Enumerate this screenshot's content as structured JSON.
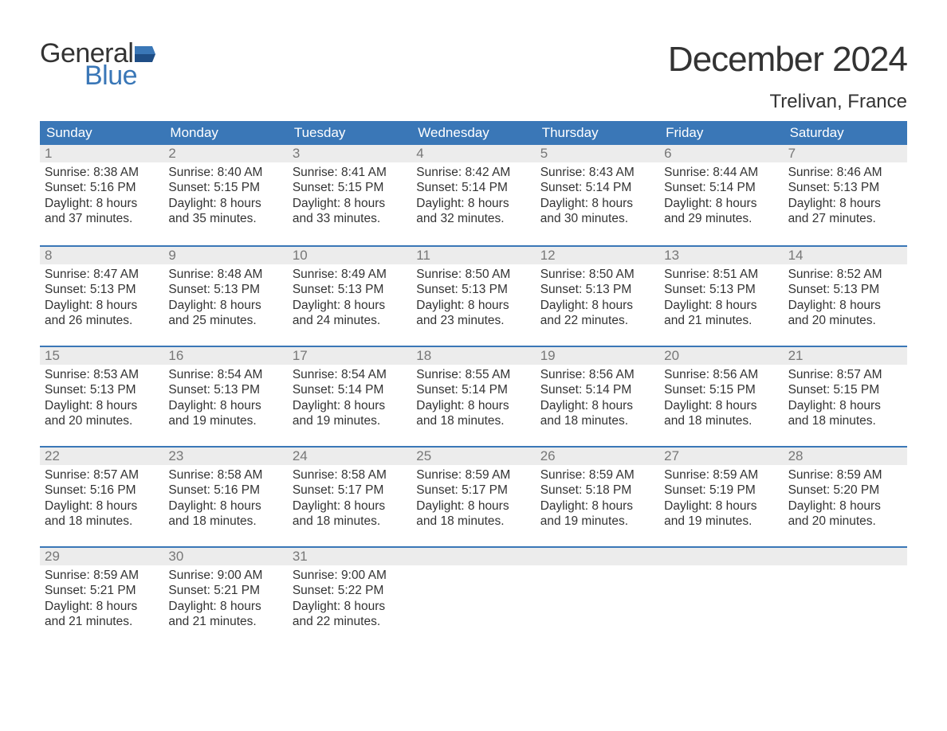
{
  "logo": {
    "word1": "General",
    "word2": "Blue"
  },
  "title": "December 2024",
  "location": "Trelivan, France",
  "colors": {
    "brand_blue": "#3a77b7",
    "header_bg": "#3a77b7",
    "header_text": "#ffffff",
    "daynum_bg": "#ececec",
    "daynum_text": "#777777",
    "body_text": "#333333",
    "page_bg": "#ffffff"
  },
  "weekdays": [
    "Sunday",
    "Monday",
    "Tuesday",
    "Wednesday",
    "Thursday",
    "Friday",
    "Saturday"
  ],
  "weeks": [
    [
      {
        "n": "1",
        "sunrise": "8:38 AM",
        "sunset": "5:16 PM",
        "dl1": "Daylight: 8 hours",
        "dl2": "and 37 minutes."
      },
      {
        "n": "2",
        "sunrise": "8:40 AM",
        "sunset": "5:15 PM",
        "dl1": "Daylight: 8 hours",
        "dl2": "and 35 minutes."
      },
      {
        "n": "3",
        "sunrise": "8:41 AM",
        "sunset": "5:15 PM",
        "dl1": "Daylight: 8 hours",
        "dl2": "and 33 minutes."
      },
      {
        "n": "4",
        "sunrise": "8:42 AM",
        "sunset": "5:14 PM",
        "dl1": "Daylight: 8 hours",
        "dl2": "and 32 minutes."
      },
      {
        "n": "5",
        "sunrise": "8:43 AM",
        "sunset": "5:14 PM",
        "dl1": "Daylight: 8 hours",
        "dl2": "and 30 minutes."
      },
      {
        "n": "6",
        "sunrise": "8:44 AM",
        "sunset": "5:14 PM",
        "dl1": "Daylight: 8 hours",
        "dl2": "and 29 minutes."
      },
      {
        "n": "7",
        "sunrise": "8:46 AM",
        "sunset": "5:13 PM",
        "dl1": "Daylight: 8 hours",
        "dl2": "and 27 minutes."
      }
    ],
    [
      {
        "n": "8",
        "sunrise": "8:47 AM",
        "sunset": "5:13 PM",
        "dl1": "Daylight: 8 hours",
        "dl2": "and 26 minutes."
      },
      {
        "n": "9",
        "sunrise": "8:48 AM",
        "sunset": "5:13 PM",
        "dl1": "Daylight: 8 hours",
        "dl2": "and 25 minutes."
      },
      {
        "n": "10",
        "sunrise": "8:49 AM",
        "sunset": "5:13 PM",
        "dl1": "Daylight: 8 hours",
        "dl2": "and 24 minutes."
      },
      {
        "n": "11",
        "sunrise": "8:50 AM",
        "sunset": "5:13 PM",
        "dl1": "Daylight: 8 hours",
        "dl2": "and 23 minutes."
      },
      {
        "n": "12",
        "sunrise": "8:50 AM",
        "sunset": "5:13 PM",
        "dl1": "Daylight: 8 hours",
        "dl2": "and 22 minutes."
      },
      {
        "n": "13",
        "sunrise": "8:51 AM",
        "sunset": "5:13 PM",
        "dl1": "Daylight: 8 hours",
        "dl2": "and 21 minutes."
      },
      {
        "n": "14",
        "sunrise": "8:52 AM",
        "sunset": "5:13 PM",
        "dl1": "Daylight: 8 hours",
        "dl2": "and 20 minutes."
      }
    ],
    [
      {
        "n": "15",
        "sunrise": "8:53 AM",
        "sunset": "5:13 PM",
        "dl1": "Daylight: 8 hours",
        "dl2": "and 20 minutes."
      },
      {
        "n": "16",
        "sunrise": "8:54 AM",
        "sunset": "5:13 PM",
        "dl1": "Daylight: 8 hours",
        "dl2": "and 19 minutes."
      },
      {
        "n": "17",
        "sunrise": "8:54 AM",
        "sunset": "5:14 PM",
        "dl1": "Daylight: 8 hours",
        "dl2": "and 19 minutes."
      },
      {
        "n": "18",
        "sunrise": "8:55 AM",
        "sunset": "5:14 PM",
        "dl1": "Daylight: 8 hours",
        "dl2": "and 18 minutes."
      },
      {
        "n": "19",
        "sunrise": "8:56 AM",
        "sunset": "5:14 PM",
        "dl1": "Daylight: 8 hours",
        "dl2": "and 18 minutes."
      },
      {
        "n": "20",
        "sunrise": "8:56 AM",
        "sunset": "5:15 PM",
        "dl1": "Daylight: 8 hours",
        "dl2": "and 18 minutes."
      },
      {
        "n": "21",
        "sunrise": "8:57 AM",
        "sunset": "5:15 PM",
        "dl1": "Daylight: 8 hours",
        "dl2": "and 18 minutes."
      }
    ],
    [
      {
        "n": "22",
        "sunrise": "8:57 AM",
        "sunset": "5:16 PM",
        "dl1": "Daylight: 8 hours",
        "dl2": "and 18 minutes."
      },
      {
        "n": "23",
        "sunrise": "8:58 AM",
        "sunset": "5:16 PM",
        "dl1": "Daylight: 8 hours",
        "dl2": "and 18 minutes."
      },
      {
        "n": "24",
        "sunrise": "8:58 AM",
        "sunset": "5:17 PM",
        "dl1": "Daylight: 8 hours",
        "dl2": "and 18 minutes."
      },
      {
        "n": "25",
        "sunrise": "8:59 AM",
        "sunset": "5:17 PM",
        "dl1": "Daylight: 8 hours",
        "dl2": "and 18 minutes."
      },
      {
        "n": "26",
        "sunrise": "8:59 AM",
        "sunset": "5:18 PM",
        "dl1": "Daylight: 8 hours",
        "dl2": "and 19 minutes."
      },
      {
        "n": "27",
        "sunrise": "8:59 AM",
        "sunset": "5:19 PM",
        "dl1": "Daylight: 8 hours",
        "dl2": "and 19 minutes."
      },
      {
        "n": "28",
        "sunrise": "8:59 AM",
        "sunset": "5:20 PM",
        "dl1": "Daylight: 8 hours",
        "dl2": "and 20 minutes."
      }
    ],
    [
      {
        "n": "29",
        "sunrise": "8:59 AM",
        "sunset": "5:21 PM",
        "dl1": "Daylight: 8 hours",
        "dl2": "and 21 minutes."
      },
      {
        "n": "30",
        "sunrise": "9:00 AM",
        "sunset": "5:21 PM",
        "dl1": "Daylight: 8 hours",
        "dl2": "and 21 minutes."
      },
      {
        "n": "31",
        "sunrise": "9:00 AM",
        "sunset": "5:22 PM",
        "dl1": "Daylight: 8 hours",
        "dl2": "and 22 minutes."
      },
      null,
      null,
      null,
      null
    ]
  ]
}
